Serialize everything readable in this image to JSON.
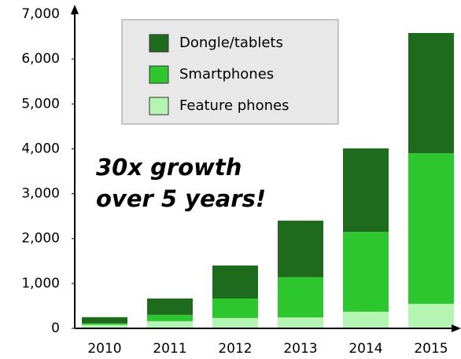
{
  "chart_data": {
    "type": "stacked_bar",
    "categories": [
      "2010",
      "2011",
      "2012",
      "2013",
      "2014",
      "2015"
    ],
    "series": [
      {
        "name": "Feature phones",
        "color": "#b4f5b4",
        "values": [
          80,
          160,
          230,
          245,
          370,
          545
        ]
      },
      {
        "name": "Smartphones",
        "color": "#2ec62e",
        "values": [
          30,
          140,
          435,
          895,
          1780,
          3355
        ]
      },
      {
        "name": "Dongle/tablets",
        "color": "#1e6b1e",
        "values": [
          140,
          365,
          735,
          1260,
          1860,
          2680
        ]
      }
    ],
    "ylim": [
      0,
      7000
    ],
    "yticks": [
      0,
      {
        "value": 1000,
        "label": "1,000"
      },
      {
        "value": 2000,
        "label": "2,000"
      },
      {
        "value": 3000,
        "label": "3,000"
      },
      {
        "value": 4000,
        "label": "4,000"
      },
      {
        "value": 5000,
        "label": "5,000"
      },
      {
        "value": 6000,
        "label": "6,000"
      },
      {
        "value": 7000,
        "label": "7,000"
      }
    ],
    "annotation": [
      "30x growth",
      "over 5 years!"
    ],
    "legend": "top"
  }
}
